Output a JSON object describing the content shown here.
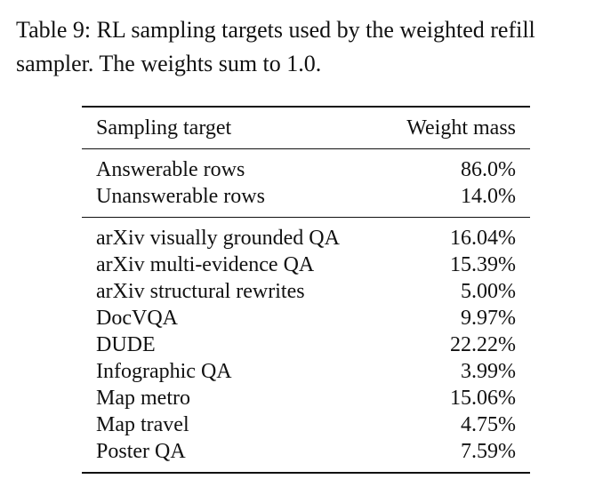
{
  "caption": "Table 9: RL sampling targets used by the weighted refill sampler. The weights sum to 1.0.",
  "table": {
    "header": [
      "Sampling target",
      "Weight mass"
    ],
    "groups": [
      [
        [
          "Answerable rows",
          "86.0%"
        ],
        [
          "Unanswerable rows",
          "14.0%"
        ]
      ],
      [
        [
          "arXiv visually grounded QA",
          "16.04%"
        ],
        [
          "arXiv multi-evidence QA",
          "15.39%"
        ],
        [
          "arXiv structural rewrites",
          "5.00%"
        ],
        [
          "DocVQA",
          "9.97%"
        ],
        [
          "DUDE",
          "22.22%"
        ],
        [
          "Infographic QA",
          "3.99%"
        ],
        [
          "Map metro",
          "15.06%"
        ],
        [
          "Map travel",
          "4.75%"
        ],
        [
          "Poster QA",
          "7.59%"
        ]
      ]
    ]
  }
}
